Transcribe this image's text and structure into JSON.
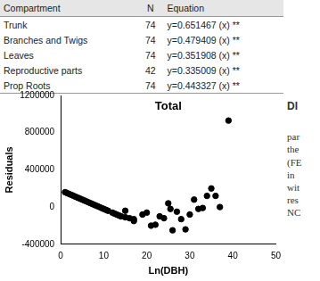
{
  "table": {
    "header": [
      "Compartment",
      "N",
      "Equation"
    ],
    "rows": [
      [
        "Trunk",
        "74",
        "y=0.651467 (x) **"
      ],
      [
        "Branches and Twigs",
        "74",
        "y=0.479409 (x) **"
      ],
      [
        "Leaves",
        "74",
        "y=0.351908 (x) **"
      ],
      [
        "Reproductive parts",
        "42",
        "y=0.335009 (x) **"
      ],
      [
        "Prop Roots",
        "74",
        "y=0.443327 (x) **"
      ]
    ]
  },
  "side_text": [
    "DI",
    "par",
    "the",
    "(FE",
    "in",
    "wit",
    "res",
    "NC"
  ],
  "chart_data": {
    "type": "scatter",
    "title": "Total",
    "x_label": "Ln(DBH)",
    "y_label": "Residuals",
    "x": [
      1,
      1.5,
      2,
      2.5,
      3,
      3.5,
      4,
      4.5,
      5,
      5.5,
      6,
      6.5,
      7,
      7.5,
      8,
      8.5,
      9,
      9.5,
      10,
      10.5,
      11,
      12,
      12.5,
      13,
      13.5,
      14,
      15,
      16,
      17,
      15,
      17,
      19,
      20,
      21,
      22,
      23,
      24,
      25,
      25.5,
      26,
      27,
      28,
      29,
      30,
      31,
      32,
      33,
      34,
      35,
      36,
      37,
      39
    ],
    "values": [
      160000,
      150000,
      140000,
      130000,
      120000,
      110000,
      100000,
      90000,
      80000,
      70000,
      60000,
      50000,
      40000,
      30000,
      20000,
      10000,
      0,
      -10000,
      -20000,
      -30000,
      -40000,
      -60000,
      -70000,
      -80000,
      -90000,
      -100000,
      -110000,
      -120000,
      -130000,
      -40000,
      -150000,
      -80000,
      -60000,
      -200000,
      -190000,
      -100000,
      -120000,
      40000,
      -20000,
      -250000,
      -50000,
      -130000,
      -240000,
      -80000,
      80000,
      -20000,
      -10000,
      120000,
      200000,
      120000,
      0,
      930000
    ],
    "color": "#000000",
    "marker": "circle",
    "xlim": [
      0,
      50
    ],
    "xticks": [
      0,
      10,
      20,
      30,
      40,
      50
    ],
    "ylim": [
      -400000,
      1200000
    ],
    "yticks": [
      -400000,
      0,
      400000,
      800000,
      1200000
    ],
    "grid": false
  }
}
